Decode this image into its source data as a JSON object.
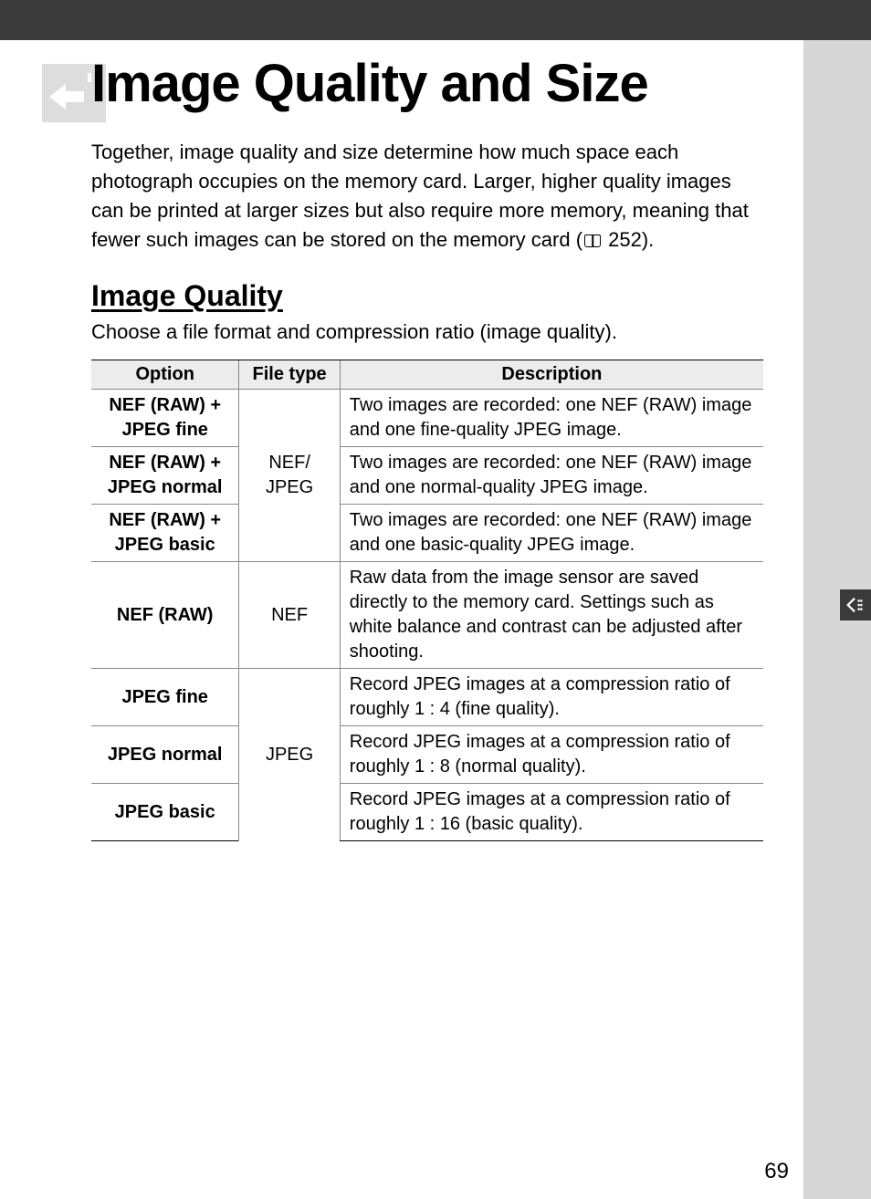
{
  "colors": {
    "top_bar": "#3a3a3a",
    "page_bg": "#ffffff",
    "outer_bg": "#d7d7d7",
    "table_header_bg": "#ececec",
    "icon_bg": "#dddddd",
    "border_strong": "#000000",
    "border_light": "#888888"
  },
  "typography": {
    "title_fontsize": 58,
    "body_fontsize": 22,
    "h2_fontsize": 32,
    "table_fontsize": 20
  },
  "page_number": "69",
  "title": "Image Quality and Size",
  "intro_before_ref": "Together, image quality and size determine how much space each photograph occupies on the memory card.  Larger, higher quality images can be printed at larger sizes but also require more memory, meaning that fewer such images can be stored on the memory card (",
  "intro_ref": " 252).",
  "section": {
    "heading": "Image Quality",
    "intro": "Choose a file format and compression ratio (image quality)."
  },
  "table": {
    "columns": [
      "Option",
      "File type",
      "Description"
    ],
    "col_widths": [
      "22%",
      "15%",
      "63%"
    ],
    "groups": [
      {
        "file_type": "NEF/\nJPEG",
        "rows": [
          {
            "option": "NEF (RAW) +\nJPEG fine",
            "description": "Two images are recorded: one NEF (RAW) image and one fine-quality JPEG image."
          },
          {
            "option": "NEF (RAW) +\nJPEG normal",
            "description": "Two images are recorded: one NEF (RAW) image and one normal-quality JPEG image."
          },
          {
            "option": "NEF (RAW) +\nJPEG basic",
            "description": "Two images are recorded: one NEF (RAW) image and one basic-quality JPEG image."
          }
        ]
      },
      {
        "file_type": "NEF",
        "rows": [
          {
            "option": "NEF (RAW)",
            "description": "Raw data from the image sensor are saved directly to the memory card.  Settings such as white balance and contrast can be adjusted after shooting."
          }
        ]
      },
      {
        "file_type": "JPEG",
        "rows": [
          {
            "option": "JPEG fine",
            "description": "Record JPEG images at a compression ratio of roughly 1 : 4 (fine quality)."
          },
          {
            "option": "JPEG normal",
            "description": "Record JPEG images at a compression ratio of roughly 1 : 8 (normal quality)."
          },
          {
            "option": "JPEG basic",
            "description": "Record JPEG images at a compression ratio of roughly 1 : 16 (basic quality)."
          }
        ]
      }
    ]
  }
}
